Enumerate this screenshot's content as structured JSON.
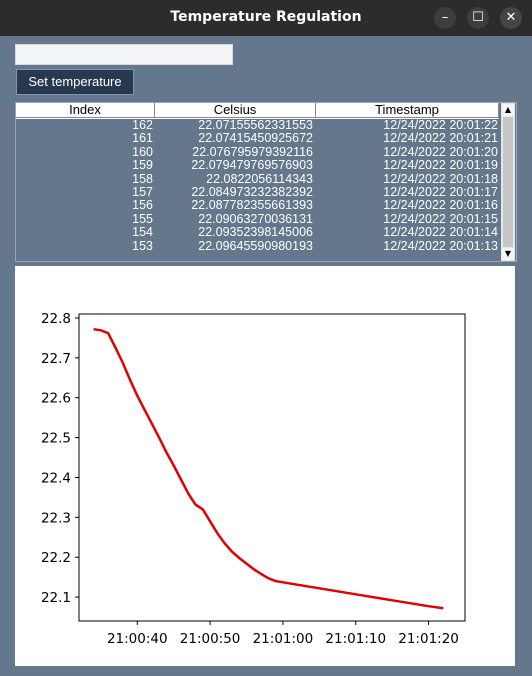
{
  "window": {
    "title": "Temperature Regulation"
  },
  "controls": {
    "entry_value": "",
    "set_button_label": "Set temperature"
  },
  "table": {
    "columns": [
      "Index",
      "Celsius",
      "Timestamp"
    ],
    "rows": [
      [
        "162",
        "22.07155562331553",
        "12/24/2022 20:01:22"
      ],
      [
        "161",
        "22.07415450925672",
        "12/24/2022 20:01:21"
      ],
      [
        "160",
        "22.076795979392116",
        "12/24/2022 20:01:20"
      ],
      [
        "159",
        "22.079479769576903",
        "12/24/2022 20:01:19"
      ],
      [
        "158",
        "22.0822056114343",
        "12/24/2022 20:01:18"
      ],
      [
        "157",
        "22.084973232382392",
        "12/24/2022 20:01:17"
      ],
      [
        "156",
        "22.087782355661393",
        "12/24/2022 20:01:16"
      ],
      [
        "155",
        "22.09063270036131",
        "12/24/2022 20:01:15"
      ],
      [
        "154",
        "22.09352398145006",
        "12/24/2022 20:01:14"
      ],
      [
        "153",
        "22.09645590980193",
        "12/24/2022 20:01:13"
      ]
    ]
  },
  "chart_data": {
    "type": "line",
    "title": "",
    "xlabel": "",
    "ylabel": "",
    "xlim": [
      "21:00:32",
      "21:01:25"
    ],
    "ylim": [
      22.04,
      22.81
    ],
    "xticks": [
      "21:00:40",
      "21:00:50",
      "21:01:00",
      "21:01:10",
      "21:01:20"
    ],
    "yticks": [
      "22.1",
      "22.2",
      "22.3",
      "22.4",
      "22.5",
      "22.6",
      "22.7",
      "22.8"
    ],
    "grid": false,
    "series": [
      {
        "color": "#e00000",
        "x": [
          "21:00:34",
          "21:00:35",
          "21:00:36",
          "21:00:37",
          "21:00:38",
          "21:00:39",
          "21:00:40",
          "21:00:41",
          "21:00:42",
          "21:00:43",
          "21:00:44",
          "21:00:45",
          "21:00:46",
          "21:00:47",
          "21:00:48",
          "21:00:49",
          "21:00:50",
          "21:00:51",
          "21:00:52",
          "21:00:53",
          "21:00:54",
          "21:00:55",
          "21:00:56",
          "21:00:57",
          "21:00:58",
          "21:00:59",
          "21:01:00",
          "21:01:05",
          "21:01:10",
          "21:01:15",
          "21:01:20",
          "21:01:22"
        ],
        "y": [
          22.772,
          22.769,
          22.762,
          22.726,
          22.688,
          22.645,
          22.605,
          22.57,
          22.535,
          22.5,
          22.463,
          22.43,
          22.395,
          22.36,
          22.332,
          22.32,
          22.29,
          22.26,
          22.235,
          22.214,
          22.198,
          22.184,
          22.17,
          22.158,
          22.147,
          22.14,
          22.137,
          22.122,
          22.107,
          22.092,
          22.077,
          22.072
        ]
      }
    ]
  }
}
